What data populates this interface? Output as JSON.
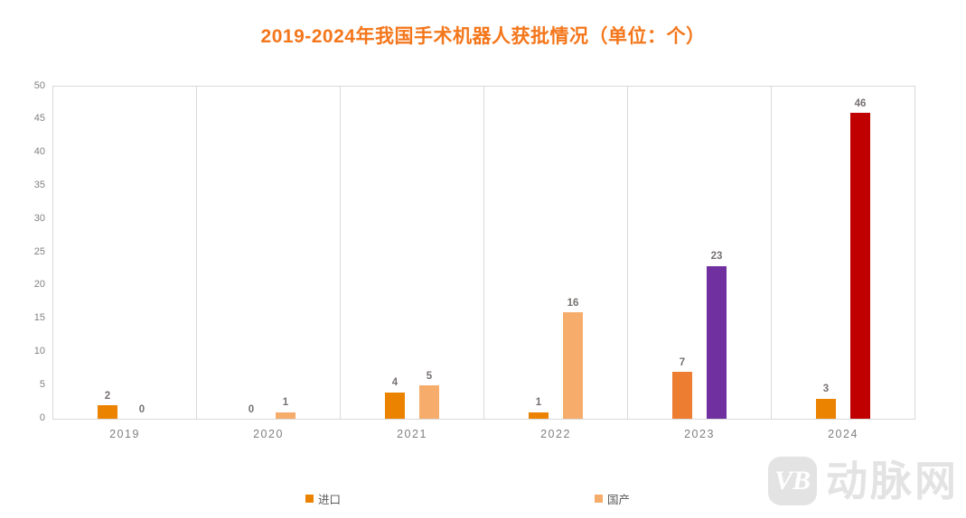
{
  "title": {
    "text": "2019-2024年我国手术机器人获批情况（单位：个）",
    "color": "#F4761B"
  },
  "chart_data": {
    "type": "bar",
    "title": "2019-2024年我国手术机器人获批情况（单位：个）",
    "categories": [
      "2019",
      "2020",
      "2021",
      "2022",
      "2023",
      "2024"
    ],
    "series": [
      {
        "id": "import",
        "name": "进口",
        "values": [
          2,
          0,
          4,
          1,
          7,
          3
        ],
        "colors": [
          "#EB8200",
          "#EB8200",
          "#EB8200",
          "#EB8200",
          "#ED7D31",
          "#EB8200"
        ]
      },
      {
        "id": "domestic",
        "name": "国产",
        "values": [
          0,
          1,
          5,
          16,
          23,
          46
        ],
        "colors": [
          "#F6AC6A",
          "#F6AC6A",
          "#F6AC6A",
          "#F6AC6A",
          "#7030A0",
          "#C00000"
        ]
      }
    ],
    "ylim": [
      0,
      50
    ],
    "ytick_step": 5,
    "xlabel": "",
    "ylabel": "",
    "grid": "plot border with vertical separators between year groups, no horizontal gridlines",
    "value_labels": "above each bar, bold gray",
    "legend": {
      "position": "bottom",
      "entries": [
        {
          "id": "import",
          "label": "进口",
          "color": "#EB8200"
        },
        {
          "id": "domestic",
          "label": "国产",
          "color": "#F6AC6A"
        }
      ]
    }
  },
  "axis_colors": {
    "line": "#D9D9D9",
    "tick_text": "#808080",
    "value_label_text": "#767171"
  },
  "watermark": {
    "badge": "VB",
    "text": "动脉网",
    "color": "#E3E3E3"
  }
}
